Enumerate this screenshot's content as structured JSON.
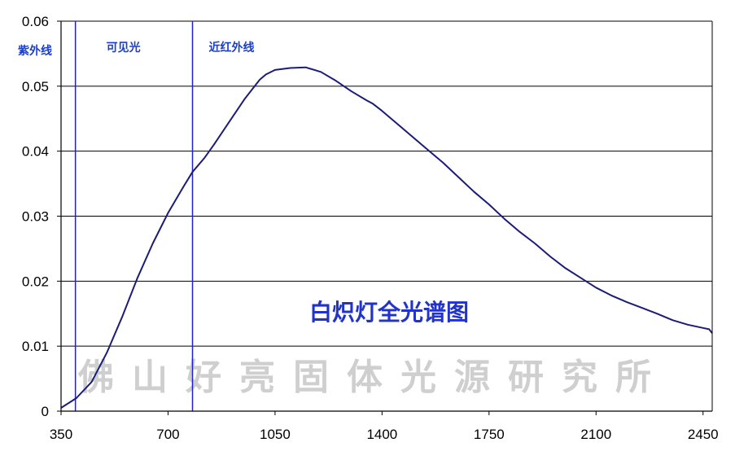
{
  "chart_data": {
    "type": "line",
    "title": "白炽灯全光谱图",
    "xlabel": "",
    "ylabel": "",
    "xlim": [
      350,
      2480
    ],
    "ylim": [
      0,
      0.06
    ],
    "x_ticks": [
      "350",
      "700",
      "1050",
      "1400",
      "1750",
      "2100",
      "2450"
    ],
    "y_ticks": [
      "0",
      "0.01",
      "0.02",
      "0.03",
      "0.04",
      "0.05",
      "0.06"
    ],
    "grid": "horizontal",
    "legend": "none",
    "region_boundaries": [
      397,
      780
    ],
    "region_labels": [
      "紫外线",
      "可见光",
      "近红外线"
    ],
    "watermark": "佛山好亮固体光源研究所",
    "colors": {
      "line": "#1c1c78",
      "boundary": "#2222cc",
      "region_label": "#1a3fd0",
      "title": "#2233cc",
      "watermark": "#cfcfcf"
    },
    "series": [
      {
        "x": [
          350,
          400,
          450,
          500,
          550,
          600,
          650,
          700,
          750,
          780,
          820,
          850,
          900,
          950,
          1000,
          1020,
          1050,
          1100,
          1150,
          1200,
          1250,
          1300,
          1350,
          1370,
          1400,
          1450,
          1500,
          1550,
          1600,
          1650,
          1700,
          1750,
          1800,
          1850,
          1900,
          1950,
          2000,
          2050,
          2100,
          2150,
          2200,
          2250,
          2300,
          2350,
          2400,
          2450,
          2470,
          2480
        ],
        "values": [
          0.0005,
          0.002,
          0.0045,
          0.009,
          0.0145,
          0.0205,
          0.0258,
          0.0305,
          0.0345,
          0.0368,
          0.039,
          0.041,
          0.0445,
          0.048,
          0.051,
          0.0518,
          0.0525,
          0.0528,
          0.0529,
          0.0522,
          0.0508,
          0.0492,
          0.0478,
          0.0473,
          0.0462,
          0.0442,
          0.0422,
          0.0402,
          0.0382,
          0.036,
          0.0338,
          0.0318,
          0.0296,
          0.0276,
          0.0258,
          0.0238,
          0.022,
          0.0205,
          0.019,
          0.0178,
          0.0168,
          0.0159,
          0.015,
          0.014,
          0.0133,
          0.0128,
          0.0126,
          0.012
        ]
      }
    ]
  }
}
